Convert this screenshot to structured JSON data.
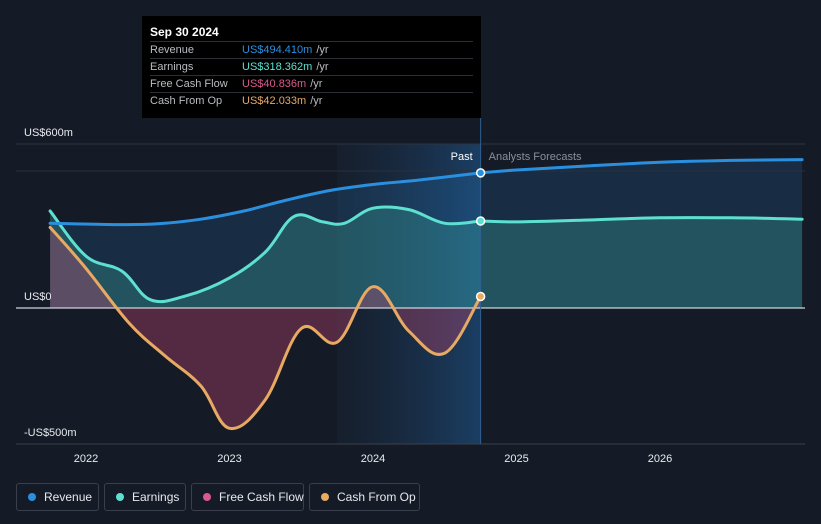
{
  "chart_data": {
    "type": "line",
    "title": "",
    "x_range": [
      2021.5,
      2026.99
    ],
    "ylim": [
      -500,
      600
    ],
    "y_tick_labels": [
      {
        "value": 600,
        "label": "US$600m"
      },
      {
        "value": 0,
        "label": "US$0"
      },
      {
        "value": -500,
        "label": "-US$500m"
      }
    ],
    "x_ticks": [
      {
        "value": 2022,
        "label": "2022"
      },
      {
        "value": 2023,
        "label": "2023"
      },
      {
        "value": 2024,
        "label": "2024"
      },
      {
        "value": 2025,
        "label": "2025"
      },
      {
        "value": 2026,
        "label": "2026"
      }
    ],
    "past_label": "Past",
    "forecast_label": "Analysts Forecasts",
    "divider_x": 2024.75,
    "highlight_start_x": 2023.75,
    "series": [
      {
        "name": "Revenue",
        "color": "#2b8fdf",
        "area": true,
        "points": [
          [
            2021.75,
            310
          ],
          [
            2022.2,
            305
          ],
          [
            2022.5,
            308
          ],
          [
            2022.8,
            325
          ],
          [
            2023.1,
            355
          ],
          [
            2023.4,
            395
          ],
          [
            2023.7,
            430
          ],
          [
            2024.0,
            452
          ],
          [
            2024.3,
            467
          ],
          [
            2024.75,
            494.41
          ]
        ],
        "forecast": [
          [
            2024.75,
            494.41
          ],
          [
            2025.0,
            505
          ],
          [
            2025.5,
            520
          ],
          [
            2026.0,
            533
          ],
          [
            2026.5,
            540
          ],
          [
            2026.99,
            543
          ]
        ]
      },
      {
        "name": "Earnings",
        "color": "#5ee0d0",
        "area": true,
        "points": [
          [
            2021.75,
            355
          ],
          [
            2022.0,
            190
          ],
          [
            2022.25,
            135
          ],
          [
            2022.45,
            30
          ],
          [
            2022.7,
            45
          ],
          [
            2023.0,
            110
          ],
          [
            2023.25,
            205
          ],
          [
            2023.45,
            335
          ],
          [
            2023.65,
            315
          ],
          [
            2023.8,
            310
          ],
          [
            2024.0,
            365
          ],
          [
            2024.25,
            360
          ],
          [
            2024.5,
            310
          ],
          [
            2024.75,
            318.36
          ]
        ],
        "forecast": [
          [
            2024.75,
            318.36
          ],
          [
            2025.0,
            315
          ],
          [
            2025.5,
            322
          ],
          [
            2026.0,
            330
          ],
          [
            2026.5,
            330
          ],
          [
            2026.99,
            325
          ]
        ]
      },
      {
        "name": "Free Cash Flow",
        "color": "#d95a8e",
        "area": true,
        "points": [
          [
            2021.75,
            290
          ],
          [
            2022.0,
            140
          ],
          [
            2022.3,
            -60
          ],
          [
            2022.55,
            -180
          ],
          [
            2022.8,
            -290
          ],
          [
            2023.0,
            -445
          ],
          [
            2023.25,
            -340
          ],
          [
            2023.5,
            -80
          ],
          [
            2023.75,
            -130
          ],
          [
            2024.0,
            75
          ],
          [
            2024.25,
            -90
          ],
          [
            2024.5,
            -170
          ],
          [
            2024.75,
            40.84
          ]
        ]
      },
      {
        "name": "Cash From Op",
        "color": "#e8a962",
        "area": false,
        "points": [
          [
            2021.75,
            295
          ],
          [
            2022.0,
            145
          ],
          [
            2022.3,
            -55
          ],
          [
            2022.55,
            -175
          ],
          [
            2022.8,
            -285
          ],
          [
            2023.0,
            -440
          ],
          [
            2023.25,
            -335
          ],
          [
            2023.5,
            -75
          ],
          [
            2023.75,
            -125
          ],
          [
            2024.0,
            78
          ],
          [
            2024.25,
            -85
          ],
          [
            2024.5,
            -165
          ],
          [
            2024.75,
            42.03
          ]
        ]
      }
    ]
  },
  "tooltip": {
    "date": "Sep 30 2024",
    "unit": "/yr",
    "rows": [
      {
        "label": "Revenue",
        "value": "US$494.410m",
        "color": "#2b8fdf"
      },
      {
        "label": "Earnings",
        "value": "US$318.362m",
        "color": "#5ee0d0"
      },
      {
        "label": "Free Cash Flow",
        "value": "US$40.836m",
        "color": "#d95a8e"
      },
      {
        "label": "Cash From Op",
        "value": "US$42.033m",
        "color": "#e8a962"
      }
    ]
  },
  "legend": [
    {
      "label": "Revenue",
      "color": "#2b8fdf"
    },
    {
      "label": "Earnings",
      "color": "#5ee0d0"
    },
    {
      "label": "Free Cash Flow",
      "color": "#d95a8e"
    },
    {
      "label": "Cash From Op",
      "color": "#e8a962"
    }
  ]
}
